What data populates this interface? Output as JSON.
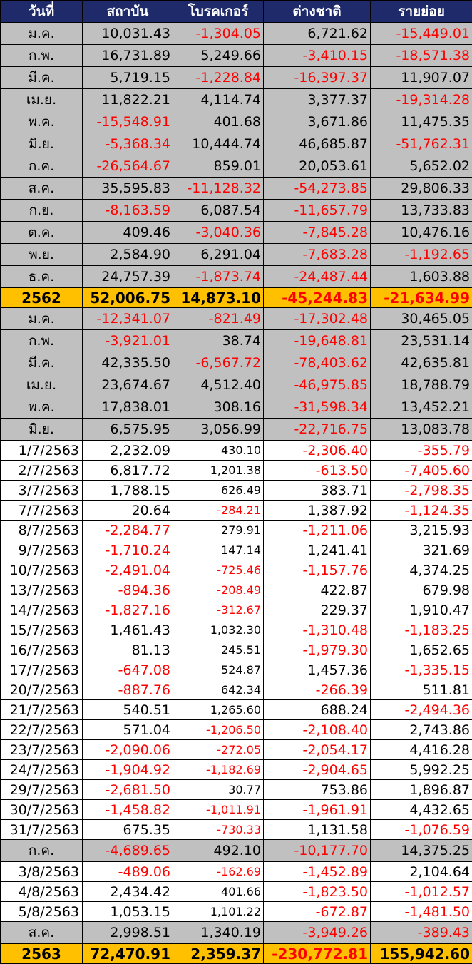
{
  "headers": [
    "วันที่",
    "สถาบัน",
    "โบรคเกอร์",
    "ต่างชาติ",
    "รายย่อย"
  ],
  "colors": {
    "header_bg": "#1f2a6b",
    "header_text": "#ffffff",
    "month_bg": "#c0c0c0",
    "total_bg": "#ffc000",
    "negative": "#ff0000"
  },
  "rows": [
    {
      "type": "month",
      "label": "ม.ค.",
      "values": [
        "10,031.43",
        "-1,304.05",
        "6,721.62",
        "-15,449.01"
      ]
    },
    {
      "type": "month",
      "label": "ก.พ.",
      "values": [
        "16,731.89",
        "5,249.66",
        "-3,410.15",
        "-18,571.38"
      ]
    },
    {
      "type": "month",
      "label": "มี.ค.",
      "values": [
        "5,719.15",
        "-1,228.84",
        "-16,397.37",
        "11,907.07"
      ]
    },
    {
      "type": "month",
      "label": "เม.ย.",
      "values": [
        "11,822.21",
        "4,114.74",
        "3,377.37",
        "-19,314.28"
      ]
    },
    {
      "type": "month",
      "label": "พ.ค.",
      "values": [
        "-15,548.91",
        "401.68",
        "3,671.86",
        "11,475.35"
      ]
    },
    {
      "type": "month",
      "label": "มิ.ย.",
      "values": [
        "-5,368.34",
        "10,444.74",
        "46,685.87",
        "-51,762.31"
      ]
    },
    {
      "type": "month",
      "label": "ก.ค.",
      "values": [
        "-26,564.67",
        "859.01",
        "20,053.61",
        "5,652.02"
      ]
    },
    {
      "type": "month",
      "label": "ส.ค.",
      "values": [
        "35,595.83",
        "-11,128.32",
        "-54,273.85",
        "29,806.33"
      ]
    },
    {
      "type": "month",
      "label": "ก.ย.",
      "values": [
        "-8,163.59",
        "6,087.54",
        "-11,657.79",
        "13,733.83"
      ]
    },
    {
      "type": "month",
      "label": "ต.ค.",
      "values": [
        "409.46",
        "-3,040.36",
        "-7,845.28",
        "10,476.16"
      ]
    },
    {
      "type": "month",
      "label": "พ.ย.",
      "values": [
        "2,584.90",
        "6,291.04",
        "-7,683.28",
        "-1,192.65"
      ]
    },
    {
      "type": "month",
      "label": "ธ.ค.",
      "values": [
        "24,757.39",
        "-1,873.74",
        "-24,487.44",
        "1,603.88"
      ]
    },
    {
      "type": "total",
      "label": "2562",
      "values": [
        "52,006.75",
        "14,873.10",
        "-45,244.83",
        "-21,634.99"
      ]
    },
    {
      "type": "month",
      "label": "ม.ค.",
      "values": [
        "-12,341.07",
        "-821.49",
        "-17,302.48",
        "30,465.05"
      ]
    },
    {
      "type": "month",
      "label": "ก.พ.",
      "values": [
        "-3,921.01",
        "38.74",
        "-19,648.81",
        "23,531.14"
      ]
    },
    {
      "type": "month",
      "label": "มี.ค.",
      "values": [
        "42,335.50",
        "-6,567.72",
        "-78,403.62",
        "42,635.81"
      ]
    },
    {
      "type": "month",
      "label": "เม.ย.",
      "values": [
        "23,674.67",
        "4,512.40",
        "-46,975.85",
        "18,788.79"
      ]
    },
    {
      "type": "month",
      "label": "พ.ค.",
      "values": [
        "17,838.01",
        "308.16",
        "-31,598.34",
        "13,452.21"
      ]
    },
    {
      "type": "month",
      "label": "มิ.ย.",
      "values": [
        "6,575.95",
        "3,056.99",
        "-22,716.75",
        "13,083.78"
      ]
    },
    {
      "type": "daily",
      "label": "1/7/2563",
      "values": [
        "2,232.09",
        "430.10",
        "-2,306.40",
        "-355.79"
      ]
    },
    {
      "type": "daily",
      "label": "2/7/2563",
      "values": [
        "6,817.72",
        "1,201.38",
        "-613.50",
        "-7,405.60"
      ]
    },
    {
      "type": "daily",
      "label": "3/7/2563",
      "values": [
        "1,788.15",
        "626.49",
        "383.71",
        "-2,798.35"
      ]
    },
    {
      "type": "daily",
      "label": "7/7/2563",
      "values": [
        "20.64",
        "-284.21",
        "1,387.92",
        "-1,124.35"
      ]
    },
    {
      "type": "daily",
      "label": "8/7/2563",
      "values": [
        "-2,284.77",
        "279.91",
        "-1,211.06",
        "3,215.93"
      ]
    },
    {
      "type": "daily",
      "label": "9/7/2563",
      "values": [
        "-1,710.24",
        "147.14",
        "1,241.41",
        "321.69"
      ]
    },
    {
      "type": "daily",
      "label": "10/7/2563",
      "values": [
        "-2,491.04",
        "-725.46",
        "-1,157.76",
        "4,374.25"
      ]
    },
    {
      "type": "daily",
      "label": "13/7/2563",
      "values": [
        "-894.36",
        "-208.49",
        "422.87",
        "679.98"
      ]
    },
    {
      "type": "daily",
      "label": "14/7/2563",
      "values": [
        "-1,827.16",
        "-312.67",
        "229.37",
        "1,910.47"
      ]
    },
    {
      "type": "daily",
      "label": "15/7/2563",
      "values": [
        "1,461.43",
        "1,032.30",
        "-1,310.48",
        "-1,183.25"
      ]
    },
    {
      "type": "daily",
      "label": "16/7/2563",
      "values": [
        "81.13",
        "245.51",
        "-1,979.30",
        "1,652.65"
      ]
    },
    {
      "type": "daily",
      "label": "17/7/2563",
      "values": [
        "-647.08",
        "524.87",
        "1,457.36",
        "-1,335.15"
      ]
    },
    {
      "type": "daily",
      "label": "20/7/2563",
      "values": [
        "-887.76",
        "642.34",
        "-266.39",
        "511.81"
      ]
    },
    {
      "type": "daily",
      "label": "21/7/2563",
      "values": [
        "540.51",
        "1,265.60",
        "688.24",
        "-2,494.36"
      ]
    },
    {
      "type": "daily",
      "label": "22/7/2563",
      "values": [
        "571.04",
        "-1,206.50",
        "-2,108.40",
        "2,743.86"
      ]
    },
    {
      "type": "daily",
      "label": "23/7/2563",
      "values": [
        "-2,090.06",
        "-272.05",
        "-2,054.17",
        "4,416.28"
      ]
    },
    {
      "type": "daily",
      "label": "24/7/2563",
      "values": [
        "-1,904.92",
        "-1,182.69",
        "-2,904.65",
        "5,992.25"
      ]
    },
    {
      "type": "daily",
      "label": "29/7/2563",
      "values": [
        "-2,681.50",
        "30.77",
        "753.86",
        "1,896.87"
      ]
    },
    {
      "type": "daily",
      "label": "30/7/2563",
      "values": [
        "-1,458.82",
        "-1,011.91",
        "-1,961.91",
        "4,432.65"
      ]
    },
    {
      "type": "daily",
      "label": "31/7/2563",
      "values": [
        "675.35",
        "-730.33",
        "1,131.58",
        "-1,076.59"
      ]
    },
    {
      "type": "month",
      "label": "ก.ค.",
      "values": [
        "-4,689.65",
        "492.10",
        "-10,177.70",
        "14,375.25"
      ]
    },
    {
      "type": "daily",
      "label": "3/8/2563",
      "values": [
        "-489.06",
        "-162.69",
        "-1,452.89",
        "2,104.64"
      ]
    },
    {
      "type": "daily",
      "label": "4/8/2563",
      "values": [
        "2,434.42",
        "401.66",
        "-1,823.50",
        "-1,012.57"
      ]
    },
    {
      "type": "daily",
      "label": "5/8/2563",
      "values": [
        "1,053.15",
        "1,101.22",
        "-672.87",
        "-1,481.50"
      ]
    },
    {
      "type": "month",
      "label": "ส.ค.",
      "values": [
        "2,998.51",
        "1,340.19",
        "-3,949.26",
        "-389.43"
      ]
    },
    {
      "type": "total",
      "label": "2563",
      "values": [
        "72,470.91",
        "2,359.37",
        "-230,772.81",
        "155,942.60"
      ]
    }
  ]
}
